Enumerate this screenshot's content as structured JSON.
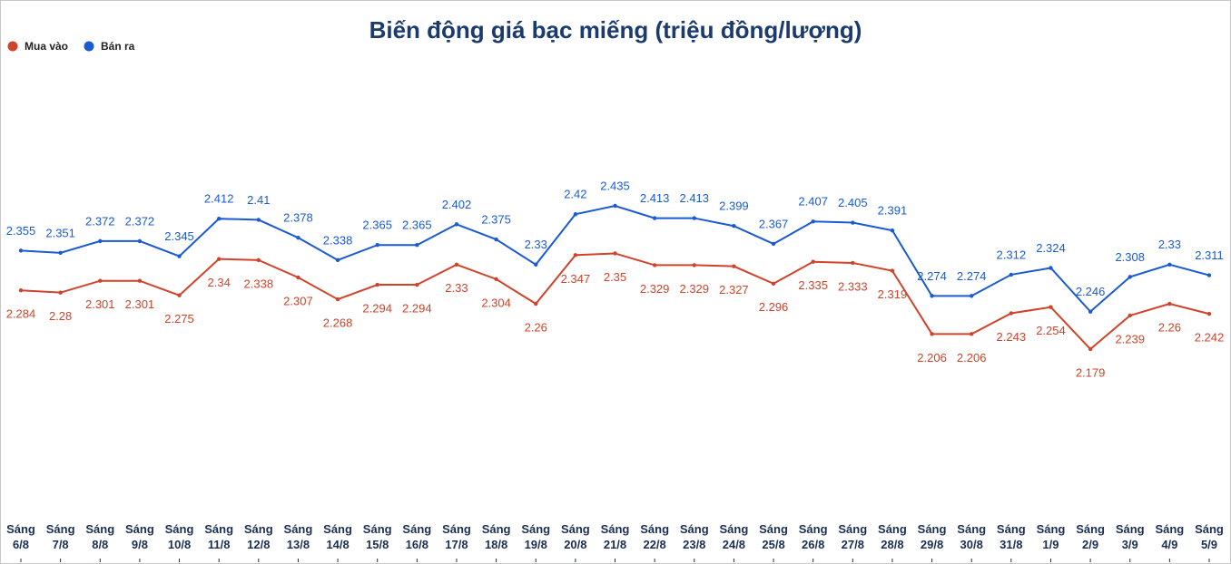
{
  "chart_data": {
    "type": "line",
    "title": "Biến động giá bạc miếng (triệu đồng/lượng)",
    "categories": [
      "Sáng 6/8",
      "Sáng 7/8",
      "Sáng 8/8",
      "Sáng 9/8",
      "Sáng 10/8",
      "Sáng 11/8",
      "Sáng 12/8",
      "Sáng 13/8",
      "Sáng 14/8",
      "Sáng 15/8",
      "Sáng 16/8",
      "Sáng 17/8",
      "Sáng 18/8",
      "Sáng 19/8",
      "Sáng 20/8",
      "Sáng 21/8",
      "Sáng 22/8",
      "Sáng 23/8",
      "Sáng 24/8",
      "Sáng 25/8",
      "Sáng 26/8",
      "Sáng 27/8",
      "Sáng 28/8",
      "Sáng 29/8",
      "Sáng 30/8",
      "Sáng 31/8",
      "Sáng 1/9",
      "Sáng 2/9",
      "Sáng 3/9",
      "Sáng 4/9",
      "Sáng 5/9"
    ],
    "series": [
      {
        "name": "Mua vào",
        "color": "#d0432a",
        "values": [
          2.284,
          2.28,
          2.301,
          2.301,
          2.275,
          2.34,
          2.338,
          2.307,
          2.268,
          2.294,
          2.294,
          2.33,
          2.304,
          2.26,
          2.347,
          2.35,
          2.329,
          2.329,
          2.327,
          2.296,
          2.335,
          2.333,
          2.319,
          2.206,
          2.206,
          2.243,
          2.254,
          2.179,
          2.239,
          2.26,
          2.242
        ]
      },
      {
        "name": "Bán ra",
        "color": "#1a5ad4",
        "values": [
          2.355,
          2.351,
          2.372,
          2.372,
          2.345,
          2.412,
          2.41,
          2.378,
          2.338,
          2.365,
          2.365,
          2.402,
          2.375,
          2.33,
          2.42,
          2.435,
          2.413,
          2.413,
          2.399,
          2.367,
          2.407,
          2.405,
          2.391,
          2.274,
          2.274,
          2.312,
          2.324,
          2.246,
          2.308,
          2.33,
          2.311
        ]
      }
    ],
    "legend": "top-left"
  }
}
